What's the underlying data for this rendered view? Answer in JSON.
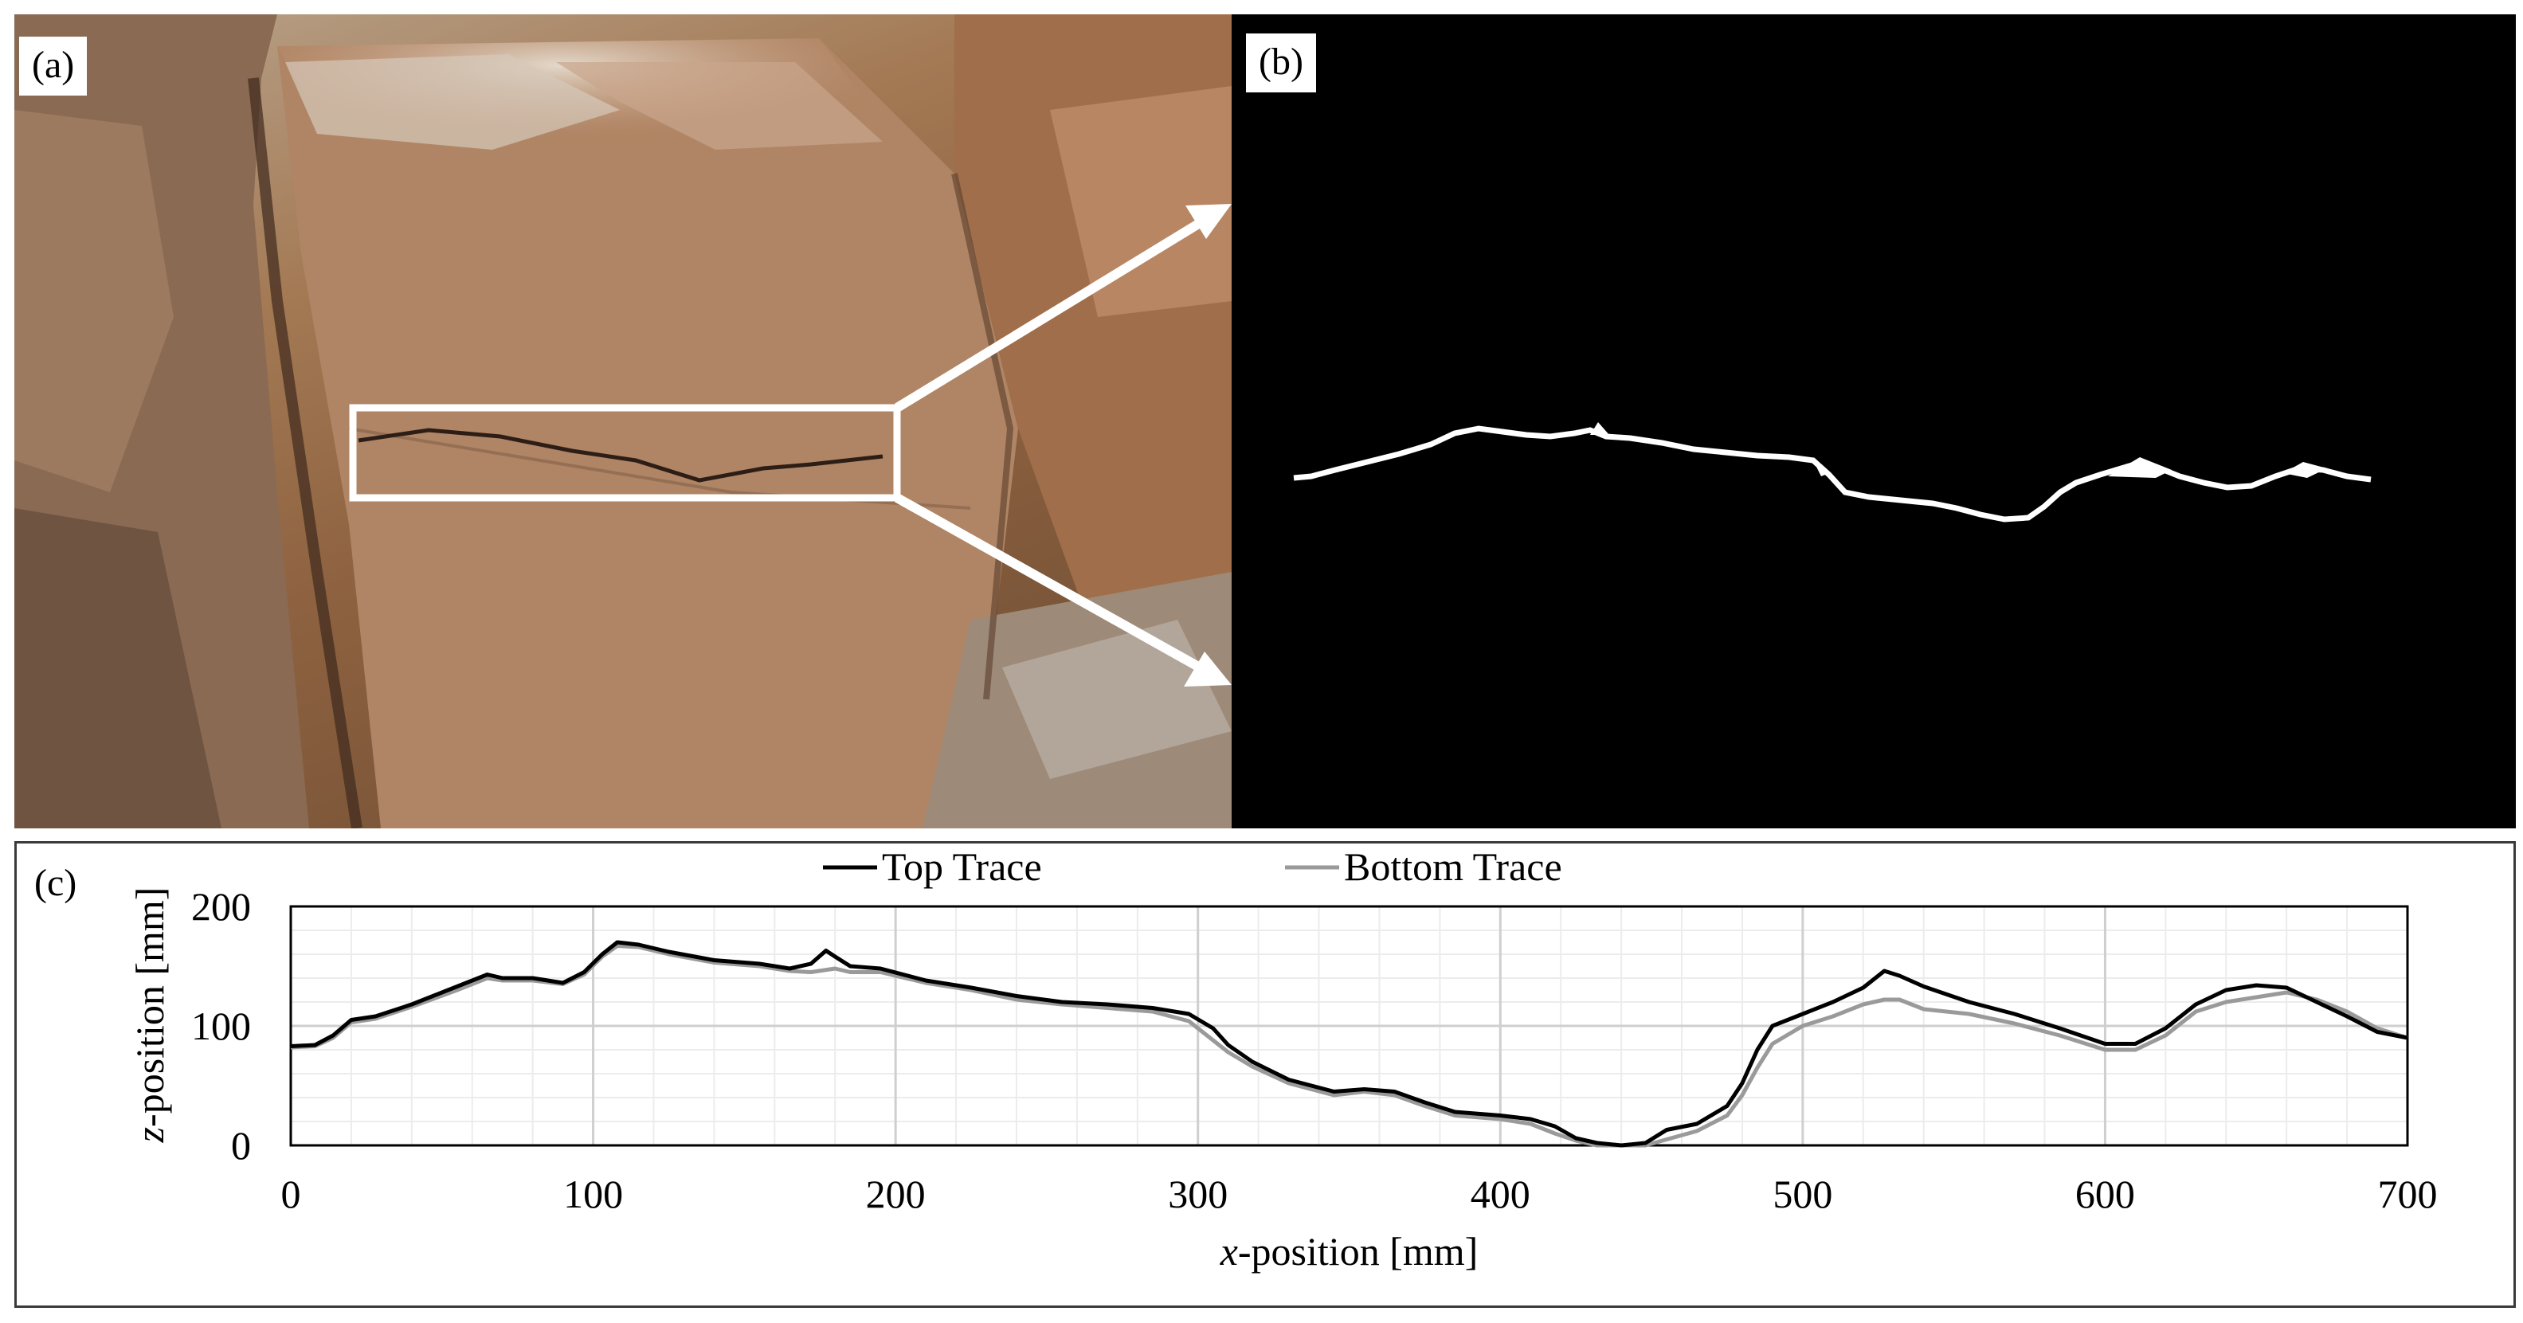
{
  "figure": {
    "panels": {
      "a": {
        "label": "(a)"
      },
      "b": {
        "label": "(b)"
      },
      "c": {
        "label": "(c)"
      }
    }
  },
  "colors": {
    "top_trace": "#000000",
    "bottom_trace": "#9a9a9a",
    "rock_light": "#c9b59d",
    "rock_mid": "#a47a55",
    "rock_dark": "#6a4a33",
    "binary_background": "#000000",
    "binary_crack": "#ffffff"
  },
  "chart_data": {
    "type": "line",
    "title": "",
    "xlabel_italic": "x",
    "xlabel_rest": "-position [mm]",
    "ylabel_italic": "z",
    "ylabel_rest": "-position [mm]",
    "xlim": [
      0,
      700
    ],
    "ylim": [
      0,
      200
    ],
    "x_ticks": [
      0,
      100,
      200,
      300,
      400,
      500,
      600,
      700
    ],
    "y_ticks": [
      0,
      100,
      200
    ],
    "x_minor_step": 20,
    "y_minor_step": 20,
    "grid": true,
    "legend_position": "top-center",
    "series": [
      {
        "name": "Top Trace",
        "points": [
          [
            0,
            83
          ],
          [
            8,
            84
          ],
          [
            14,
            92
          ],
          [
            20,
            105
          ],
          [
            28,
            108
          ],
          [
            40,
            118
          ],
          [
            55,
            133
          ],
          [
            65,
            143
          ],
          [
            70,
            140
          ],
          [
            80,
            140
          ],
          [
            90,
            136
          ],
          [
            97,
            145
          ],
          [
            103,
            160
          ],
          [
            108,
            170
          ],
          [
            115,
            168
          ],
          [
            125,
            162
          ],
          [
            140,
            155
          ],
          [
            155,
            152
          ],
          [
            165,
            148
          ],
          [
            172,
            152
          ],
          [
            177,
            163
          ],
          [
            180,
            158
          ],
          [
            185,
            150
          ],
          [
            195,
            148
          ],
          [
            210,
            138
          ],
          [
            225,
            132
          ],
          [
            240,
            125
          ],
          [
            255,
            120
          ],
          [
            270,
            118
          ],
          [
            285,
            115
          ],
          [
            297,
            110
          ],
          [
            305,
            98
          ],
          [
            310,
            84
          ],
          [
            318,
            70
          ],
          [
            330,
            55
          ],
          [
            345,
            45
          ],
          [
            355,
            47
          ],
          [
            365,
            45
          ],
          [
            375,
            36
          ],
          [
            385,
            28
          ],
          [
            400,
            25
          ],
          [
            410,
            22
          ],
          [
            418,
            16
          ],
          [
            425,
            6
          ],
          [
            432,
            2
          ],
          [
            440,
            0
          ],
          [
            448,
            2
          ],
          [
            455,
            13
          ],
          [
            465,
            18
          ],
          [
            475,
            33
          ],
          [
            480,
            52
          ],
          [
            485,
            80
          ],
          [
            490,
            100
          ],
          [
            500,
            110
          ],
          [
            510,
            120
          ],
          [
            520,
            132
          ],
          [
            527,
            146
          ],
          [
            532,
            142
          ],
          [
            540,
            133
          ],
          [
            555,
            120
          ],
          [
            570,
            110
          ],
          [
            585,
            98
          ],
          [
            600,
            85
          ],
          [
            610,
            85
          ],
          [
            620,
            98
          ],
          [
            630,
            118
          ],
          [
            640,
            130
          ],
          [
            650,
            134
          ],
          [
            660,
            132
          ],
          [
            670,
            120
          ],
          [
            680,
            108
          ],
          [
            690,
            95
          ],
          [
            700,
            90
          ]
        ]
      },
      {
        "name": "Bottom Trace",
        "points": [
          [
            0,
            82
          ],
          [
            8,
            83
          ],
          [
            14,
            90
          ],
          [
            20,
            103
          ],
          [
            28,
            106
          ],
          [
            40,
            116
          ],
          [
            55,
            130
          ],
          [
            65,
            140
          ],
          [
            70,
            138
          ],
          [
            80,
            138
          ],
          [
            90,
            135
          ],
          [
            97,
            143
          ],
          [
            103,
            158
          ],
          [
            108,
            167
          ],
          [
            115,
            166
          ],
          [
            125,
            160
          ],
          [
            140,
            153
          ],
          [
            155,
            150
          ],
          [
            165,
            146
          ],
          [
            172,
            145
          ],
          [
            180,
            148
          ],
          [
            185,
            145
          ],
          [
            195,
            145
          ],
          [
            210,
            136
          ],
          [
            225,
            130
          ],
          [
            240,
            122
          ],
          [
            255,
            118
          ],
          [
            270,
            115
          ],
          [
            285,
            112
          ],
          [
            297,
            104
          ],
          [
            305,
            88
          ],
          [
            310,
            78
          ],
          [
            318,
            66
          ],
          [
            330,
            52
          ],
          [
            345,
            42
          ],
          [
            355,
            45
          ],
          [
            365,
            42
          ],
          [
            375,
            33
          ],
          [
            385,
            25
          ],
          [
            400,
            22
          ],
          [
            410,
            18
          ],
          [
            418,
            10
          ],
          [
            425,
            4
          ],
          [
            432,
            0
          ],
          [
            440,
            0
          ],
          [
            448,
            0
          ],
          [
            455,
            5
          ],
          [
            465,
            12
          ],
          [
            475,
            25
          ],
          [
            480,
            42
          ],
          [
            485,
            65
          ],
          [
            490,
            85
          ],
          [
            500,
            100
          ],
          [
            510,
            108
          ],
          [
            520,
            118
          ],
          [
            527,
            122
          ],
          [
            532,
            122
          ],
          [
            540,
            114
          ],
          [
            555,
            110
          ],
          [
            570,
            102
          ],
          [
            585,
            92
          ],
          [
            600,
            80
          ],
          [
            610,
            80
          ],
          [
            620,
            92
          ],
          [
            630,
            112
          ],
          [
            640,
            120
          ],
          [
            650,
            124
          ],
          [
            660,
            128
          ],
          [
            670,
            122
          ],
          [
            680,
            112
          ],
          [
            690,
            98
          ],
          [
            700,
            90
          ]
        ]
      }
    ]
  }
}
